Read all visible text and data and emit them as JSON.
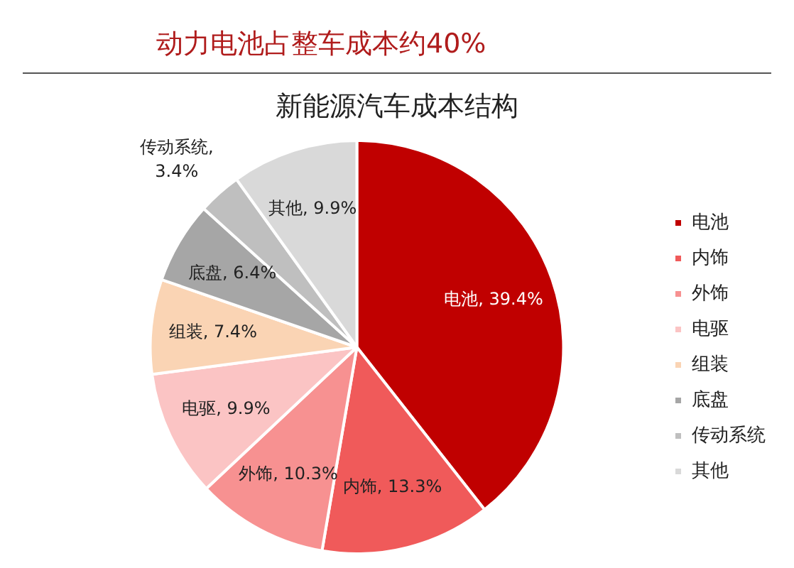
{
  "chart_data": {
    "type": "pie",
    "title": "动力电池占整车成本约40%",
    "subtitle": "新能源汽车成本结构",
    "categories": [
      "电池",
      "内饰",
      "外饰",
      "电驱",
      "组装",
      "底盘",
      "传动系统",
      "其他"
    ],
    "values": [
      39.4,
      13.3,
      10.3,
      9.9,
      7.4,
      6.4,
      3.4,
      9.9
    ],
    "colors": [
      "#c00000",
      "#f05a5a",
      "#f79191",
      "#fbc4c4",
      "#fad4b4",
      "#a6a6a6",
      "#bfbfbf",
      "#d9d9d9"
    ],
    "value_labels": [
      "电池, 39.4%",
      "内饰, 13.3%",
      "外饰, 10.3%",
      "电驱, 9.9%",
      "组装, 7.4%",
      "底盘, 6.4%",
      "传动系统, 3.4%",
      "其他, 9.9%"
    ],
    "legend": "right"
  }
}
